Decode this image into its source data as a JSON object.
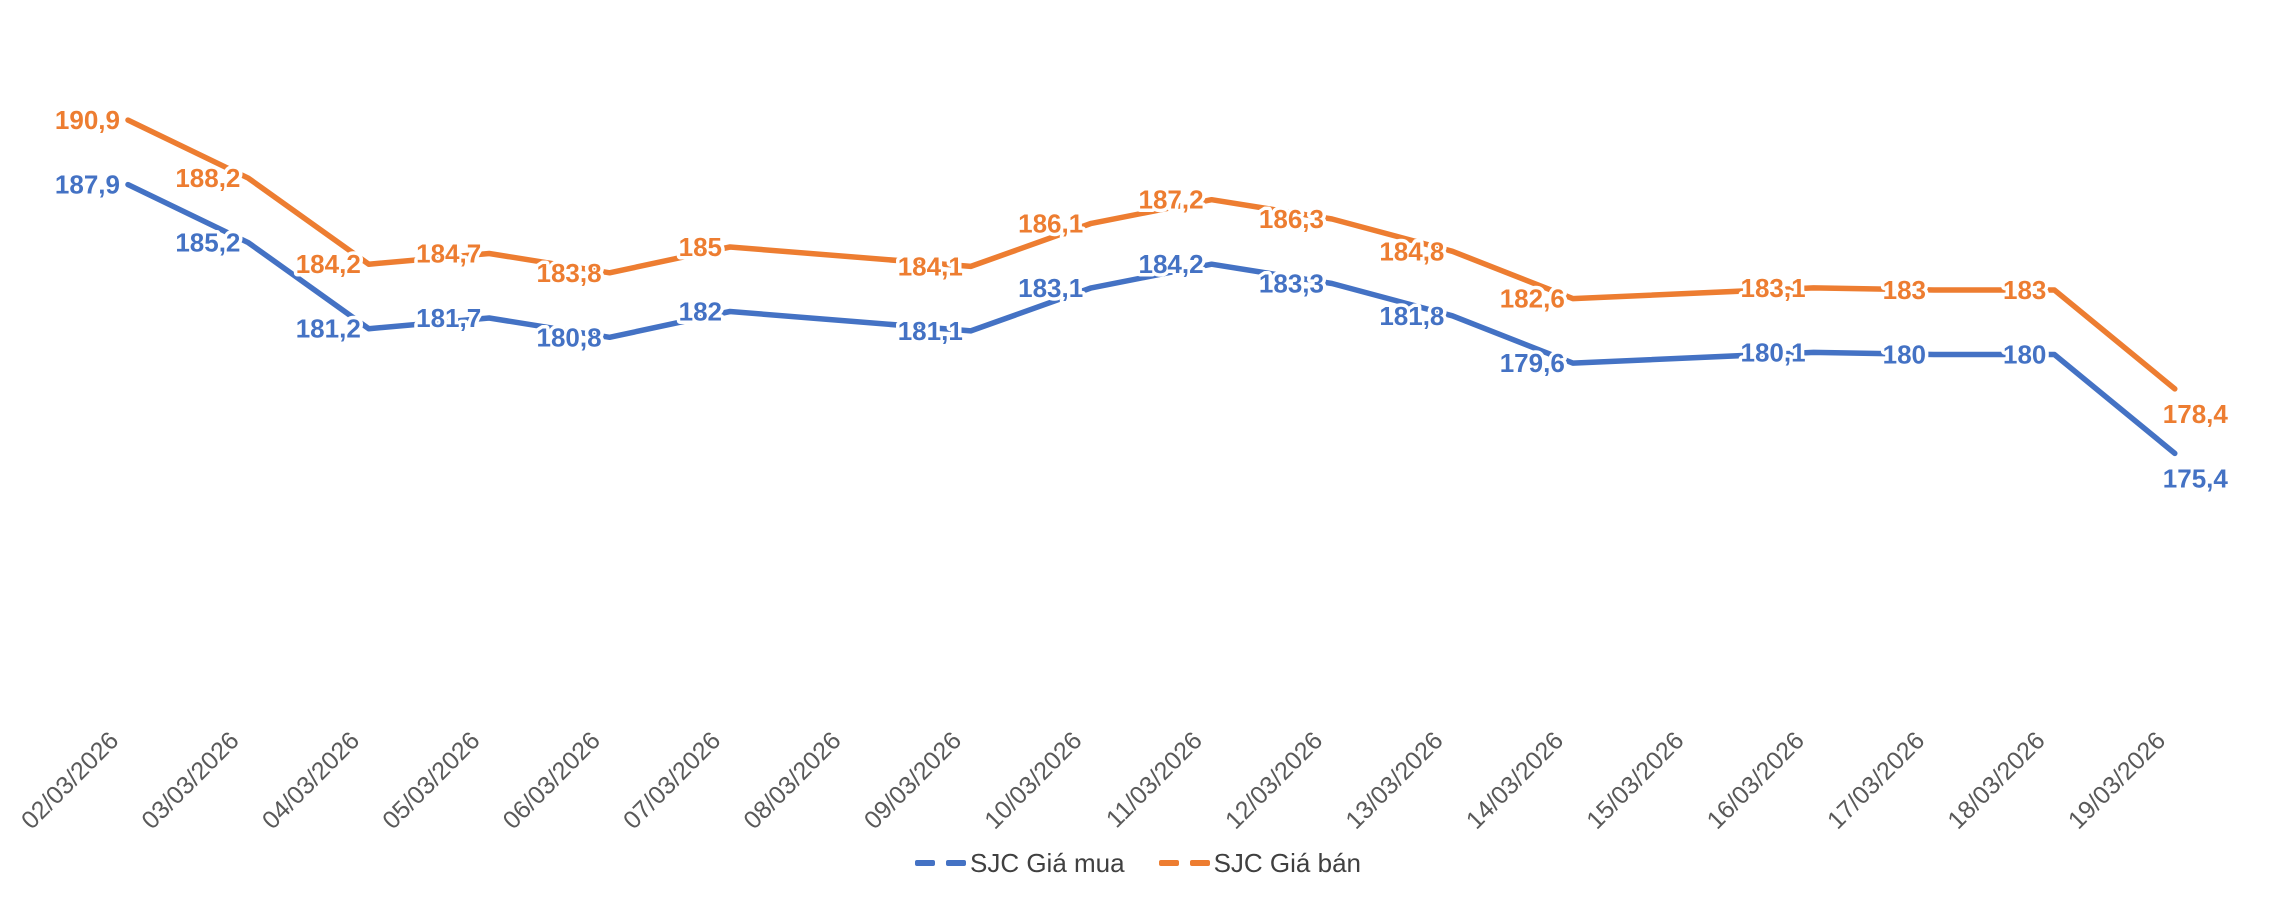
{
  "chart_data": {
    "type": "line",
    "title": "",
    "xlabel": "",
    "ylabel": "",
    "x": [
      "02/03/2026",
      "03/03/2026",
      "04/03/2026",
      "05/03/2026",
      "06/03/2026",
      "07/03/2026",
      "08/03/2026",
      "09/03/2026",
      "10/03/2026",
      "11/03/2026",
      "12/03/2026",
      "13/03/2026",
      "14/03/2026",
      "15/03/2026",
      "16/03/2026",
      "17/03/2026",
      "18/03/2026",
      "19/03/2026"
    ],
    "series": [
      {
        "name": "SJC Giá mua",
        "color": "#4472C4",
        "values": [
          187.9,
          185.2,
          181.2,
          181.7,
          180.8,
          182,
          null,
          181.1,
          183.1,
          184.2,
          183.3,
          181.8,
          179.6,
          null,
          180.1,
          180,
          180,
          175.4
        ],
        "labels": [
          "187,9",
          "185,2",
          "181,2",
          "181,7",
          "180,8",
          "182",
          "",
          "181,1",
          "183,1",
          "184,2",
          "183,3",
          "181,8",
          "179,6",
          "",
          "180,1",
          "180",
          "180",
          "175,4"
        ]
      },
      {
        "name": "SJC Giá bán",
        "color": "#ED7D31",
        "values": [
          190.9,
          188.2,
          184.2,
          184.7,
          183.8,
          185,
          null,
          184.1,
          186.1,
          187.2,
          186.3,
          184.8,
          182.6,
          null,
          183.1,
          183,
          183,
          178.4
        ],
        "labels": [
          "190,9",
          "188,2",
          "184,2",
          "184,7",
          "183,8",
          "185",
          "",
          "184,1",
          "186,1",
          "187,2",
          "186,3",
          "184,8",
          "182,6",
          "",
          "183,1",
          "183",
          "183",
          "178,4"
        ]
      }
    ],
    "ylim": [
      175,
      191
    ],
    "y_axis_visible": false,
    "grid": false,
    "legend_position": "bottom-center",
    "axis_label_color": "#595959",
    "legend_text_color": "#404040"
  }
}
